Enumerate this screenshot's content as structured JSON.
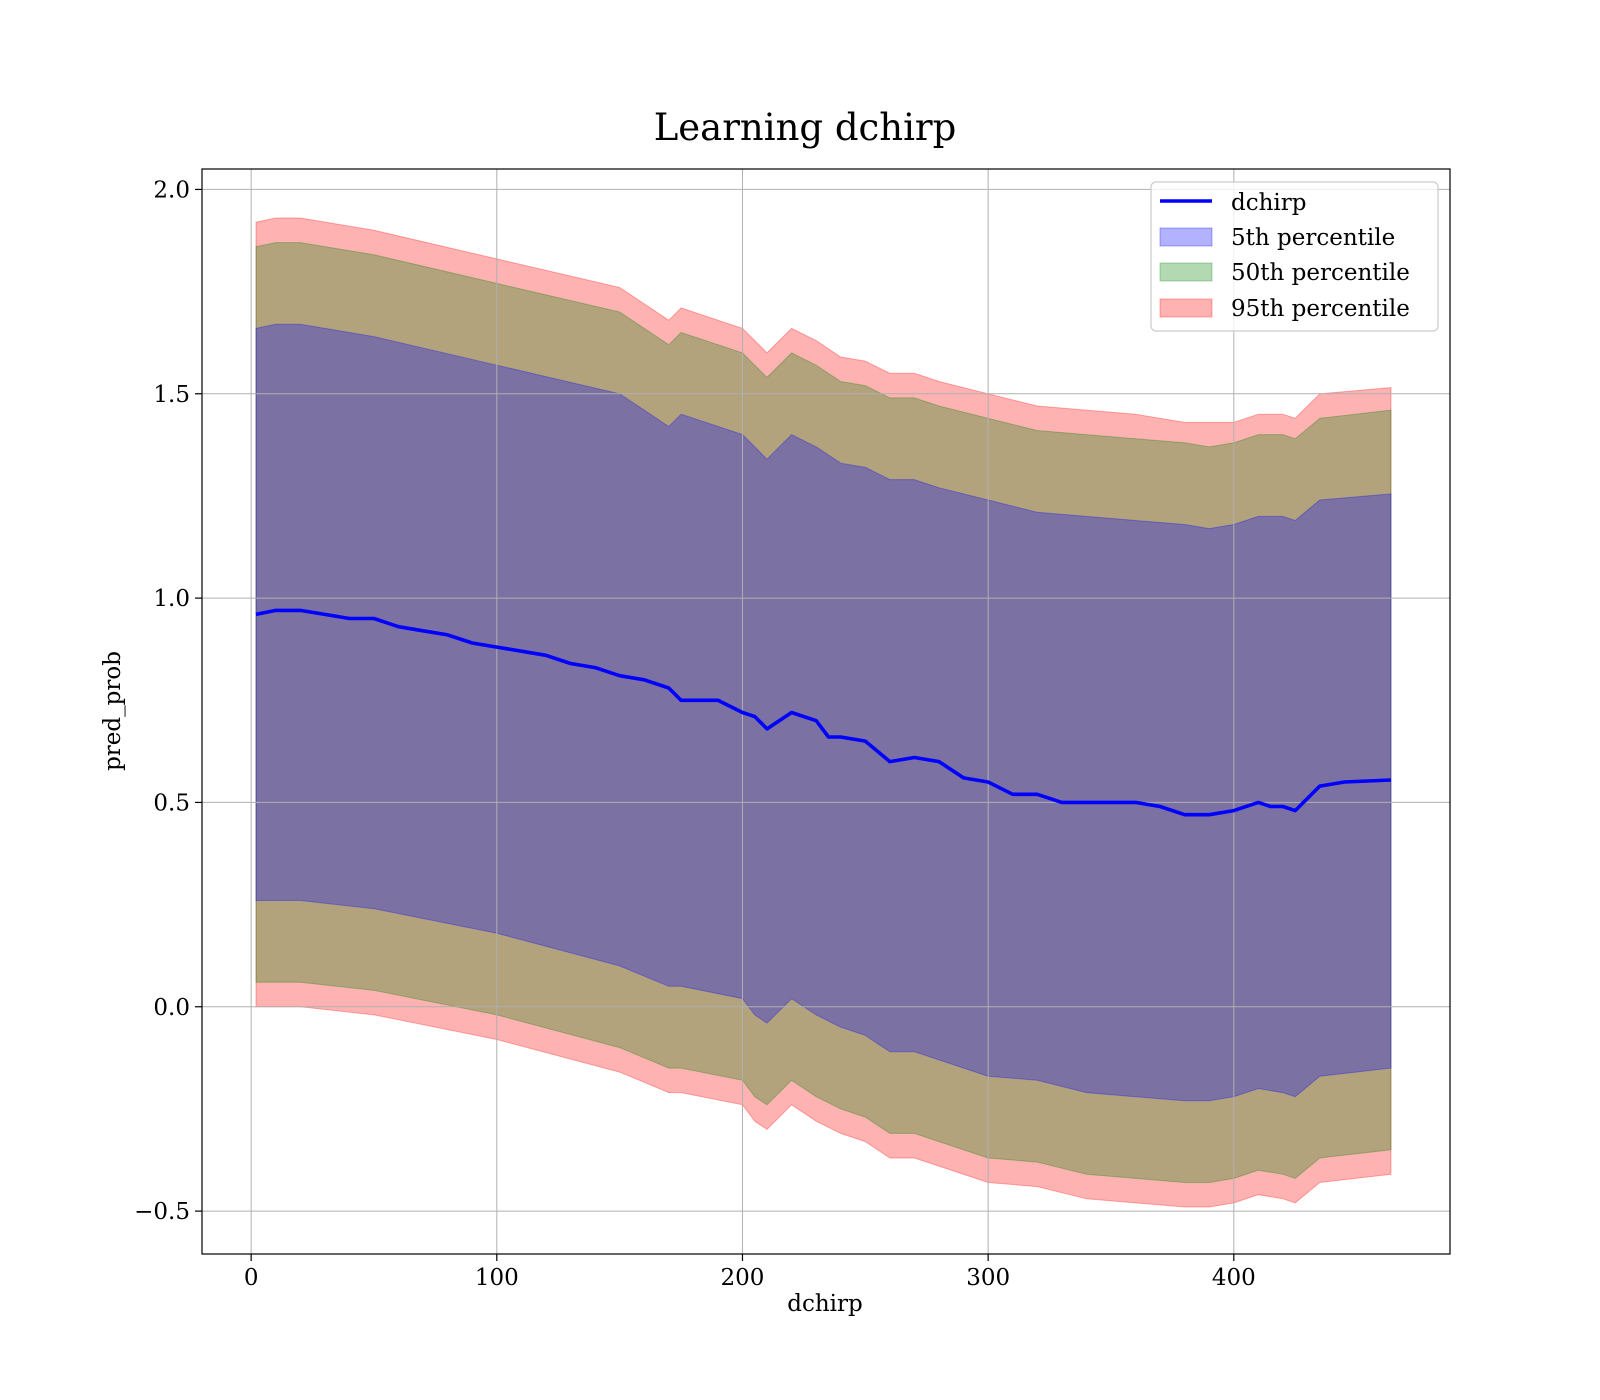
{
  "chart_data": {
    "type": "line",
    "title": "Learning dchirp",
    "xlabel": "dchirp",
    "ylabel": "pred_prob",
    "xlim": [
      -20,
      488
    ],
    "ylim": [
      -0.605,
      2.05
    ],
    "xticks": [
      0,
      100,
      200,
      300,
      400
    ],
    "xtick_labels": [
      "0",
      "100",
      "200",
      "300",
      "400"
    ],
    "yticks": [
      -0.5,
      0.0,
      0.5,
      1.0,
      1.5,
      2.0
    ],
    "ytick_labels": [
      "−0.5",
      "0.0",
      "0.5",
      "1.0",
      "1.5",
      "2.0"
    ],
    "grid": true,
    "legend_position": "top-right",
    "line": {
      "name": "dchirp",
      "color": "#0000ff",
      "x": [
        2,
        10,
        20,
        30,
        40,
        50,
        60,
        70,
        80,
        90,
        100,
        110,
        120,
        130,
        140,
        150,
        160,
        170,
        175,
        180,
        190,
        200,
        205,
        210,
        220,
        230,
        235,
        240,
        250,
        260,
        270,
        280,
        290,
        300,
        310,
        320,
        330,
        340,
        350,
        360,
        370,
        380,
        390,
        400,
        410,
        415,
        420,
        425,
        435,
        445,
        464
      ],
      "y": [
        0.96,
        0.97,
        0.97,
        0.96,
        0.95,
        0.95,
        0.93,
        0.92,
        0.91,
        0.89,
        0.88,
        0.87,
        0.86,
        0.84,
        0.83,
        0.81,
        0.8,
        0.78,
        0.75,
        0.75,
        0.75,
        0.72,
        0.71,
        0.68,
        0.72,
        0.7,
        0.66,
        0.66,
        0.65,
        0.6,
        0.61,
        0.6,
        0.56,
        0.55,
        0.52,
        0.52,
        0.5,
        0.5,
        0.5,
        0.5,
        0.49,
        0.47,
        0.47,
        0.48,
        0.5,
        0.49,
        0.49,
        0.48,
        0.54,
        0.55,
        0.555
      ]
    },
    "series": [
      {
        "name": "5th percentile",
        "color": "#0000ff",
        "x": [
          2,
          10,
          20,
          50,
          100,
          150,
          170,
          175,
          200,
          205,
          210,
          220,
          230,
          240,
          250,
          260,
          270,
          280,
          300,
          320,
          340,
          360,
          380,
          390,
          400,
          410,
          420,
          425,
          435,
          464
        ],
        "upper": [
          1.66,
          1.67,
          1.67,
          1.64,
          1.57,
          1.5,
          1.42,
          1.45,
          1.4,
          1.37,
          1.34,
          1.4,
          1.37,
          1.33,
          1.32,
          1.29,
          1.29,
          1.27,
          1.24,
          1.21,
          1.2,
          1.19,
          1.18,
          1.17,
          1.18,
          1.2,
          1.2,
          1.19,
          1.24,
          1.255
        ],
        "lower": [
          0.26,
          0.26,
          0.26,
          0.24,
          0.18,
          0.1,
          0.05,
          0.05,
          0.02,
          -0.02,
          -0.04,
          0.02,
          -0.02,
          -0.05,
          -0.07,
          -0.11,
          -0.11,
          -0.13,
          -0.17,
          -0.18,
          -0.21,
          -0.22,
          -0.23,
          -0.23,
          -0.22,
          -0.2,
          -0.21,
          -0.22,
          -0.17,
          -0.15
        ]
      },
      {
        "name": "50th percentile",
        "color": "#008000",
        "x": [
          2,
          10,
          20,
          50,
          100,
          150,
          170,
          175,
          200,
          205,
          210,
          220,
          230,
          240,
          250,
          260,
          270,
          280,
          300,
          320,
          340,
          360,
          380,
          390,
          400,
          410,
          420,
          425,
          435,
          464
        ],
        "upper": [
          1.86,
          1.87,
          1.87,
          1.84,
          1.77,
          1.7,
          1.62,
          1.65,
          1.6,
          1.57,
          1.54,
          1.6,
          1.57,
          1.53,
          1.52,
          1.49,
          1.49,
          1.47,
          1.44,
          1.41,
          1.4,
          1.39,
          1.38,
          1.37,
          1.38,
          1.4,
          1.4,
          1.39,
          1.44,
          1.46
        ],
        "lower": [
          0.06,
          0.06,
          0.06,
          0.04,
          -0.02,
          -0.1,
          -0.15,
          -0.15,
          -0.18,
          -0.22,
          -0.24,
          -0.18,
          -0.22,
          -0.25,
          -0.27,
          -0.31,
          -0.31,
          -0.33,
          -0.37,
          -0.38,
          -0.41,
          -0.42,
          -0.43,
          -0.43,
          -0.42,
          -0.4,
          -0.41,
          -0.42,
          -0.37,
          -0.35
        ]
      },
      {
        "name": "95th percentile",
        "color": "#ff0000",
        "x": [
          2,
          10,
          20,
          50,
          100,
          150,
          170,
          175,
          200,
          205,
          210,
          220,
          230,
          240,
          250,
          260,
          270,
          280,
          300,
          320,
          340,
          360,
          380,
          390,
          400,
          410,
          420,
          425,
          435,
          464
        ],
        "upper": [
          1.92,
          1.93,
          1.93,
          1.9,
          1.83,
          1.76,
          1.68,
          1.71,
          1.66,
          1.63,
          1.6,
          1.66,
          1.63,
          1.59,
          1.58,
          1.55,
          1.55,
          1.53,
          1.5,
          1.47,
          1.46,
          1.45,
          1.43,
          1.43,
          1.43,
          1.45,
          1.45,
          1.44,
          1.5,
          1.515
        ],
        "lower": [
          0.0,
          0.0,
          0.0,
          -0.02,
          -0.08,
          -0.16,
          -0.21,
          -0.21,
          -0.24,
          -0.28,
          -0.3,
          -0.24,
          -0.28,
          -0.31,
          -0.33,
          -0.37,
          -0.37,
          -0.39,
          -0.43,
          -0.44,
          -0.47,
          -0.48,
          -0.49,
          -0.49,
          -0.48,
          -0.46,
          -0.47,
          -0.48,
          -0.43,
          -0.41
        ]
      }
    ]
  }
}
